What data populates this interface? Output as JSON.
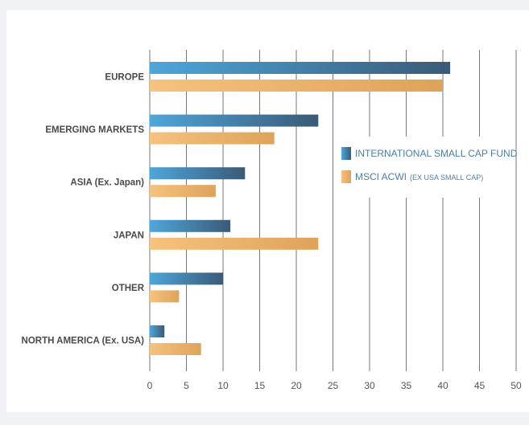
{
  "chart_data": {
    "type": "bar",
    "orientation": "horizontal",
    "categories": [
      "EUROPE",
      "EMERGING MARKETS",
      "ASIA (Ex. Japan)",
      "JAPAN",
      "OTHER",
      "NORTH AMERICA  (Ex. USA)"
    ],
    "series": [
      {
        "name": "INTERNATIONAL SMALL CAP FUND",
        "values": [
          41,
          23,
          13,
          11,
          10,
          2
        ],
        "color_start": "#4ea6da",
        "color_end": "#3a5a78"
      },
      {
        "name": "MSCI ACWI",
        "name_suffix": "(EX USA SMALL CAP)",
        "values": [
          40,
          17,
          9,
          23,
          4,
          7
        ],
        "color_start": "#f6c27f",
        "color_end": "#dea35a"
      }
    ],
    "xlim": [
      0,
      50
    ],
    "xticks": [
      0,
      5,
      10,
      15,
      20,
      25,
      30,
      35,
      40,
      45,
      50
    ],
    "title": "",
    "xlabel": "",
    "ylabel": "",
    "grid": "vertical",
    "legend": "right"
  }
}
